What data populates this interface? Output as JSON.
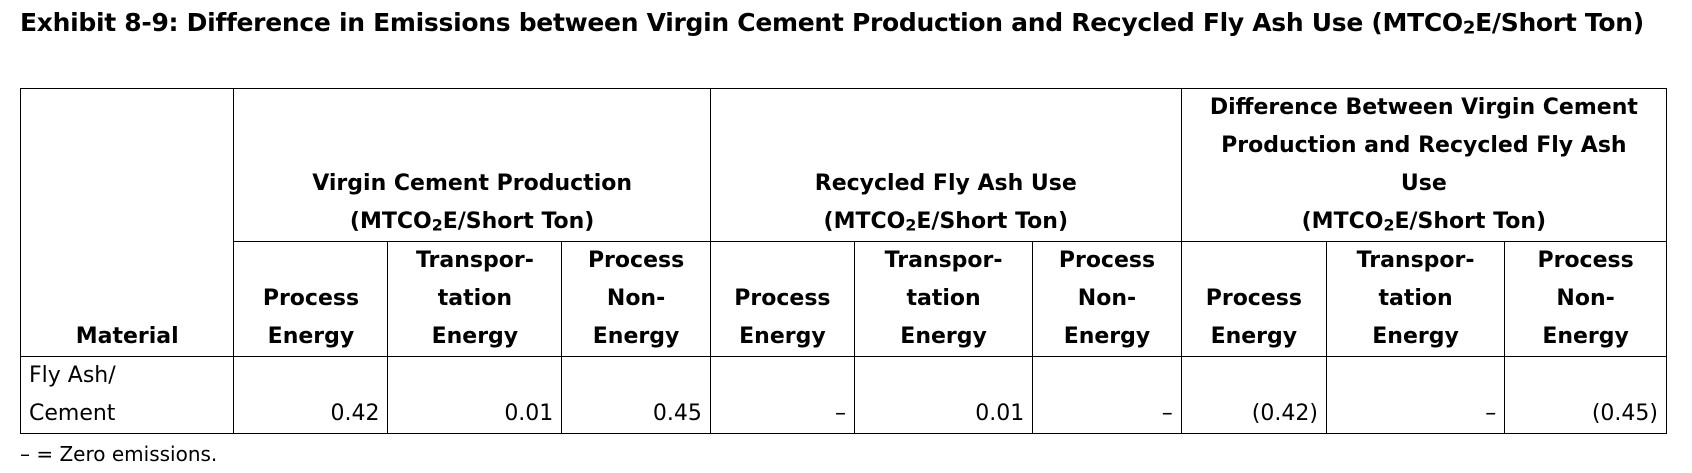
{
  "title": {
    "prefix": "Exhibit 8-9: Difference in Emissions between Virgin Cement Production and Recycled Fly Ash Use (MTCO",
    "sub": "2",
    "suffix": "E/Short Ton)"
  },
  "table": {
    "material_header": "Material",
    "groups": [
      {
        "line1": "Virgin Cement Production",
        "unit_prefix": "(MTCO",
        "unit_sub": "2",
        "unit_suffix": "E/Short Ton)"
      },
      {
        "line1": "Recycled Fly Ash Use",
        "unit_prefix": "(MTCO",
        "unit_sub": "2",
        "unit_suffix": "E/Short Ton)"
      },
      {
        "line1": "Difference Between Virgin Cement Production and Recycled Fly Ash Use",
        "unit_prefix": "(MTCO",
        "unit_sub": "2",
        "unit_suffix": "E/Short Ton)"
      }
    ],
    "subheaders": [
      {
        "l1": "Process",
        "l2": "Energy"
      },
      {
        "l1": "Transpor-",
        "l2": "tation",
        "l3": "Energy"
      },
      {
        "l1": "Process",
        "l2": "Non-",
        "l3": "Energy"
      }
    ],
    "rows": [
      {
        "material_line1": "Fly Ash/",
        "material_line2": "Cement",
        "values": [
          "0.42",
          "0.01",
          "0.45",
          "–",
          "0.01",
          "–",
          "(0.42)",
          "–",
          "(0.45)"
        ]
      }
    ]
  },
  "footnote": "– = Zero emissions."
}
